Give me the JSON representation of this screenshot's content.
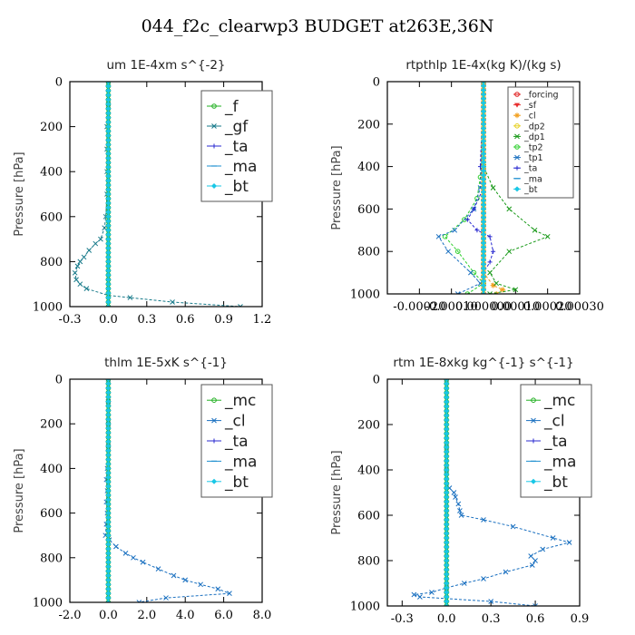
{
  "figure": {
    "title": "044_f2c_clearwp3  BUDGET at263E,36N"
  },
  "chart_data": [
    {
      "type": "line",
      "title": "um   1E-4xm s^{-2}",
      "ylabel": "Pressure [hPa]",
      "xlim": [
        -0.3,
        1.2
      ],
      "ylim": [
        1000,
        0
      ],
      "xticks": [
        "-0.3",
        "0.0",
        "0.3",
        "0.6",
        "0.9",
        "1.2"
      ],
      "yticks": [
        "0",
        "200",
        "400",
        "600",
        "800",
        "1000"
      ],
      "legend": "top-right",
      "series": [
        {
          "name": "_f",
          "color": "#22b022",
          "marker": "o",
          "y": [
            0,
            1000
          ],
          "x": [
            0,
            0
          ]
        },
        {
          "name": "_gf",
          "color": "#177a8a",
          "marker": "x",
          "y": [
            0,
            100,
            200,
            300,
            400,
            500,
            600,
            650,
            700,
            720,
            750,
            780,
            800,
            820,
            850,
            880,
            900,
            920,
            950,
            960,
            980,
            1000
          ],
          "x": [
            0,
            0,
            -0.01,
            -0.01,
            -0.01,
            -0.01,
            -0.02,
            -0.03,
            -0.06,
            -0.1,
            -0.15,
            -0.19,
            -0.22,
            -0.24,
            -0.26,
            -0.25,
            -0.22,
            -0.17,
            0.0,
            0.17,
            0.5,
            1.03
          ]
        },
        {
          "name": "_ta",
          "color": "#2828d0",
          "marker": "+",
          "y": [
            0,
            1000
          ],
          "x": [
            0,
            0
          ]
        },
        {
          "name": "_ma",
          "color": "#1e8fd0",
          "marker": "-",
          "y": [
            0,
            1000
          ],
          "x": [
            0,
            0
          ]
        },
        {
          "name": "_bt",
          "color": "#19c7e6",
          "marker": "d",
          "y": [
            0,
            1000
          ],
          "x": [
            0,
            0
          ]
        }
      ]
    },
    {
      "type": "line",
      "title": "rtpthlp   1E-4x(kg K)/(kg s)",
      "ylabel": "Pressure [hPa]",
      "xlim": [
        -0.0003,
        0.0003
      ],
      "ylim": [
        1000,
        0
      ],
      "xticks": [
        "-0.00020",
        "-0.00010",
        "0.000000",
        "0.00010",
        "0.00020",
        "0.00030"
      ],
      "yticks": [
        "0",
        "200",
        "400",
        "600",
        "800",
        "1000"
      ],
      "legend": "top-right",
      "series": [
        {
          "name": "_forcing",
          "color": "#e02020",
          "marker": "o",
          "y": [
            0,
            1000
          ],
          "x": [
            0,
            0
          ]
        },
        {
          "name": "_sf",
          "color": "#e83030",
          "marker": "v",
          "y": [
            0,
            1000
          ],
          "x": [
            0,
            0
          ]
        },
        {
          "name": "_cl",
          "color": "#f2a020",
          "marker": "*",
          "y": [
            0,
            900,
            960,
            980,
            1000
          ],
          "x": [
            0,
            0,
            3e-05,
            6e-05,
            4e-05
          ]
        },
        {
          "name": "_dp2",
          "color": "#e6d020",
          "marker": "o",
          "y": [
            0,
            1000
          ],
          "x": [
            0,
            0
          ]
        },
        {
          "name": "_dp1",
          "color": "#1a9a1a",
          "marker": "x",
          "y": [
            0,
            400,
            500,
            600,
            700,
            730,
            800,
            900,
            950,
            980,
            1000
          ],
          "x": [
            0,
            0,
            3e-05,
            8e-05,
            0.00016,
            0.0002,
            8e-05,
            2e-05,
            4e-05,
            0.0001,
            2e-05
          ]
        },
        {
          "name": "_tp2",
          "color": "#30d030",
          "marker": "o",
          "y": [
            0,
            450,
            550,
            650,
            730,
            800,
            900,
            950,
            1000
          ],
          "x": [
            0,
            -1e-05,
            -2e-05,
            -6e-05,
            -0.00012,
            -8e-05,
            -3e-05,
            0.0,
            -5e-05
          ]
        },
        {
          "name": "_tp1",
          "color": "#1a70c0",
          "marker": "x",
          "y": [
            0,
            500,
            600,
            700,
            730,
            800,
            900,
            950,
            1000
          ],
          "x": [
            0,
            -1e-05,
            -3e-05,
            -9e-05,
            -0.00014,
            -0.00011,
            -4e-05,
            -1e-05,
            -8e-05
          ]
        },
        {
          "name": "_ta",
          "color": "#2828d0",
          "marker": "+",
          "y": [
            0,
            400,
            500,
            600,
            650,
            700,
            730,
            800,
            850,
            900,
            1000
          ],
          "x": [
            0,
            -1e-05,
            0.0,
            -3e-05,
            -5e-05,
            -2e-05,
            2e-05,
            3e-05,
            2e-05,
            0.0,
            0.0
          ]
        },
        {
          "name": "_ma",
          "color": "#1e8fd0",
          "marker": "-",
          "y": [
            0,
            1000
          ],
          "x": [
            0,
            0
          ]
        },
        {
          "name": "_bt",
          "color": "#19c7e6",
          "marker": "d",
          "y": [
            0,
            1000
          ],
          "x": [
            0,
            0
          ]
        }
      ]
    },
    {
      "type": "line",
      "title": "thlm   1E-5xK s^{-1}",
      "ylabel": "Pressure [hPa]",
      "xlim": [
        -2.0,
        8.0
      ],
      "ylim": [
        1000,
        0
      ],
      "xticks": [
        "-2.0",
        "0.0",
        "2.0",
        "4.0",
        "6.0",
        "8.0"
      ],
      "yticks": [
        "0",
        "200",
        "400",
        "600",
        "800",
        "1000"
      ],
      "legend": "top-right",
      "series": [
        {
          "name": "_mc",
          "color": "#22b022",
          "marker": "o",
          "y": [
            0,
            1000
          ],
          "x": [
            0,
            0
          ]
        },
        {
          "name": "_cl",
          "color": "#1a70c0",
          "marker": "x",
          "y": [
            0,
            100,
            200,
            300,
            400,
            450,
            500,
            550,
            600,
            650,
            700,
            720,
            750,
            780,
            800,
            820,
            850,
            880,
            900,
            920,
            940,
            960,
            980,
            1000
          ],
          "x": [
            0,
            0,
            0,
            0,
            -0.05,
            -0.1,
            -0.05,
            -0.1,
            -0.05,
            -0.1,
            -0.15,
            0.05,
            0.4,
            0.9,
            1.3,
            1.8,
            2.6,
            3.4,
            4.0,
            4.8,
            5.7,
            6.3,
            3.0,
            1.6
          ]
        },
        {
          "name": "_ta",
          "color": "#2828d0",
          "marker": "+",
          "y": [
            0,
            1000
          ],
          "x": [
            0,
            0
          ]
        },
        {
          "name": "_ma",
          "color": "#1e8fd0",
          "marker": "-",
          "y": [
            0,
            1000
          ],
          "x": [
            0,
            0
          ]
        },
        {
          "name": "_bt",
          "color": "#19c7e6",
          "marker": "d",
          "y": [
            0,
            1000
          ],
          "x": [
            0,
            0
          ]
        }
      ]
    },
    {
      "type": "line",
      "title": "rtm   1E-8xkg kg^{-1} s^{-1}",
      "ylabel": "Pressure [hPa]",
      "xlim": [
        -0.4,
        0.9
      ],
      "ylim": [
        1000,
        0
      ],
      "xticks": [
        "-0.3",
        "0.0",
        "0.3",
        "0.6",
        "0.9"
      ],
      "yticks": [
        "0",
        "200",
        "400",
        "600",
        "800",
        "1000"
      ],
      "legend": "top-right",
      "series": [
        {
          "name": "_mc",
          "color": "#22b022",
          "marker": "o",
          "y": [
            0,
            1000
          ],
          "x": [
            0,
            0
          ]
        },
        {
          "name": "_cl",
          "color": "#1a70c0",
          "marker": "x",
          "y": [
            0,
            300,
            400,
            450,
            480,
            500,
            520,
            550,
            580,
            600,
            620,
            650,
            700,
            720,
            750,
            780,
            800,
            820,
            850,
            880,
            900,
            920,
            940,
            950,
            960,
            980,
            1000
          ],
          "x": [
            0,
            0,
            0,
            0,
            0.02,
            0.05,
            0.06,
            0.08,
            0.09,
            0.1,
            0.25,
            0.45,
            0.72,
            0.83,
            0.65,
            0.57,
            0.6,
            0.58,
            0.4,
            0.25,
            0.12,
            0.0,
            -0.1,
            -0.22,
            -0.18,
            0.3,
            0.6
          ]
        },
        {
          "name": "_ta",
          "color": "#2828d0",
          "marker": "+",
          "y": [
            0,
            1000
          ],
          "x": [
            0,
            0
          ]
        },
        {
          "name": "_ma",
          "color": "#1e8fd0",
          "marker": "-",
          "y": [
            0,
            1000
          ],
          "x": [
            0,
            0
          ]
        },
        {
          "name": "_bt",
          "color": "#19c7e6",
          "marker": "d",
          "y": [
            0,
            1000
          ],
          "x": [
            0,
            0
          ]
        }
      ]
    }
  ]
}
